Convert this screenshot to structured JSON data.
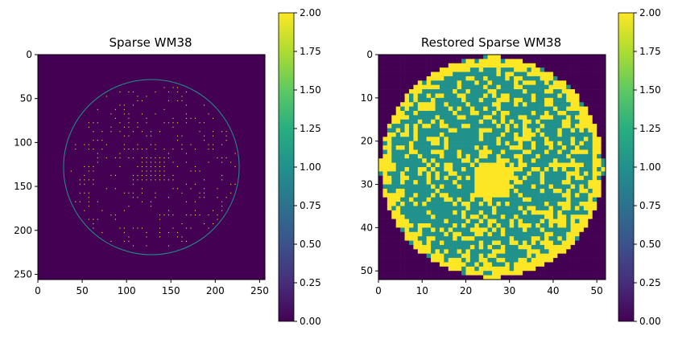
{
  "chart_data": [
    {
      "type": "heatmap",
      "title": "Sparse WM38",
      "xlim": [
        0,
        256
      ],
      "ylim": [
        256,
        0
      ],
      "x_ticks": [
        0,
        50,
        100,
        150,
        200,
        250
      ],
      "y_ticks": [
        0,
        50,
        100,
        150,
        200,
        250
      ],
      "x_tick_labels": [
        "0",
        "50",
        "100",
        "150",
        "200",
        "250"
      ],
      "y_tick_labels": [
        "0",
        "50",
        "100",
        "150",
        "200",
        "250"
      ],
      "value_range": [
        0,
        2
      ],
      "colormap": "viridis",
      "wafer_center": [
        128,
        128
      ],
      "wafer_radius": 99,
      "wafer_edge_value": 1,
      "sparse_defect_spacing": 5,
      "sparse_defect_value": 2,
      "background_value": 0,
      "colorbar_ticks": [
        0.0,
        0.25,
        0.5,
        0.75,
        1.0,
        1.25,
        1.5,
        1.75,
        2.0
      ],
      "colorbar_tick_labels": [
        "0.00",
        "0.25",
        "0.50",
        "0.75",
        "1.00",
        "1.25",
        "1.50",
        "1.75",
        "2.00"
      ]
    },
    {
      "type": "heatmap",
      "title": "Restored Sparse WM38",
      "xlim": [
        0,
        52
      ],
      "ylim": [
        52,
        0
      ],
      "x_ticks": [
        0,
        10,
        20,
        30,
        40,
        50
      ],
      "y_ticks": [
        0,
        10,
        20,
        30,
        40,
        50
      ],
      "x_tick_labels": [
        "0",
        "10",
        "20",
        "30",
        "40",
        "50"
      ],
      "y_tick_labels": [
        "0",
        "10",
        "20",
        "30",
        "40",
        "50"
      ],
      "value_range": [
        0,
        2
      ],
      "colormap": "viridis",
      "wafer_center": [
        26,
        26
      ],
      "wafer_radius": 25.6,
      "center_blob_center": [
        26,
        29
      ],
      "center_blob_radius": 4.4,
      "values_present": [
        0,
        1,
        2
      ],
      "colorbar_ticks": [
        0.0,
        0.25,
        0.5,
        0.75,
        1.0,
        1.25,
        1.5,
        1.75,
        2.0
      ],
      "colorbar_tick_labels": [
        "0.00",
        "0.25",
        "0.50",
        "0.75",
        "1.00",
        "1.25",
        "1.50",
        "1.75",
        "2.00"
      ]
    }
  ]
}
